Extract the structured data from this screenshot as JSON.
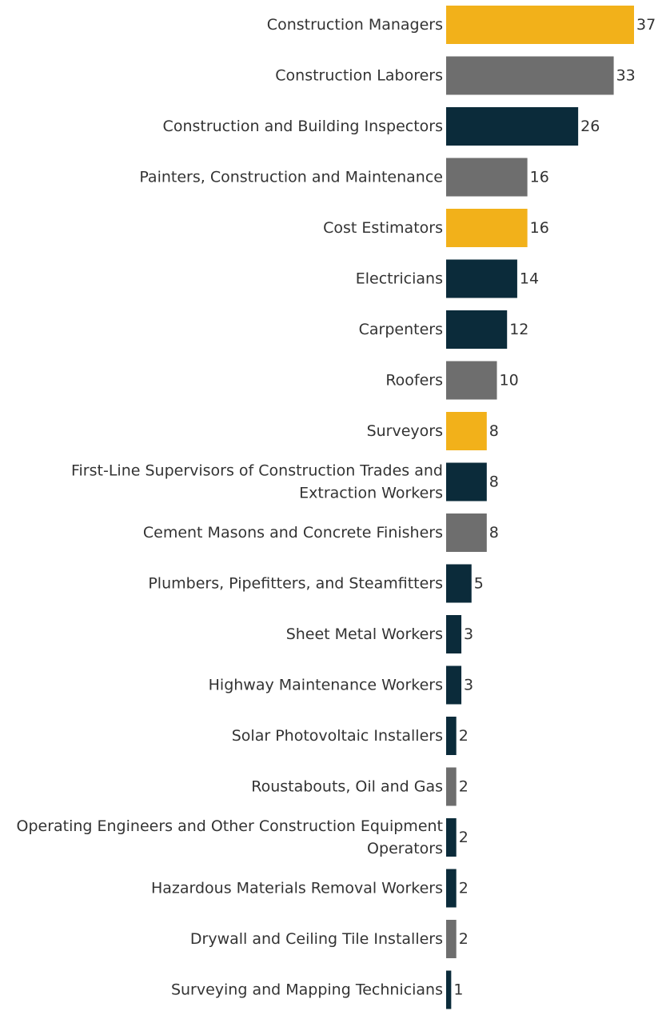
{
  "chart_data": {
    "type": "bar",
    "orientation": "horizontal",
    "title": "",
    "xlabel": "",
    "ylabel": "",
    "xlim": [
      0,
      37
    ],
    "grid": false,
    "legend": "none",
    "colors": {
      "gold": "#F2B11A",
      "gray": "#6E6E6E",
      "navy": "#0B2B3A"
    },
    "categories": [
      [
        "Construction Managers"
      ],
      [
        "Construction Laborers"
      ],
      [
        "Construction and Building Inspectors"
      ],
      [
        "Painters, Construction and Maintenance"
      ],
      [
        "Cost Estimators"
      ],
      [
        "Electricians"
      ],
      [
        "Carpenters"
      ],
      [
        "Roofers"
      ],
      [
        "Surveyors"
      ],
      [
        "First-Line Supervisors of Construction Trades and",
        "Extraction Workers"
      ],
      [
        "Cement Masons and Concrete Finishers"
      ],
      [
        "Plumbers, Pipefitters, and Steamfitters"
      ],
      [
        "Sheet Metal Workers"
      ],
      [
        "Highway Maintenance Workers"
      ],
      [
        "Solar Photovoltaic Installers"
      ],
      [
        "Roustabouts, Oil and Gas"
      ],
      [
        "Operating Engineers and Other Construction Equipment",
        "Operators"
      ],
      [
        "Hazardous Materials Removal Workers"
      ],
      [
        "Drywall and Ceiling Tile Installers"
      ],
      [
        "Surveying and Mapping Technicians"
      ]
    ],
    "values": [
      37,
      33,
      26,
      16,
      16,
      14,
      12,
      10,
      8,
      8,
      8,
      5,
      3,
      3,
      2,
      2,
      2,
      2,
      2,
      1
    ],
    "bar_colors": [
      "gold",
      "gray",
      "navy",
      "gray",
      "gold",
      "navy",
      "navy",
      "gray",
      "gold",
      "navy",
      "gray",
      "navy",
      "navy",
      "navy",
      "navy",
      "gray",
      "navy",
      "navy",
      "gray",
      "navy"
    ]
  }
}
